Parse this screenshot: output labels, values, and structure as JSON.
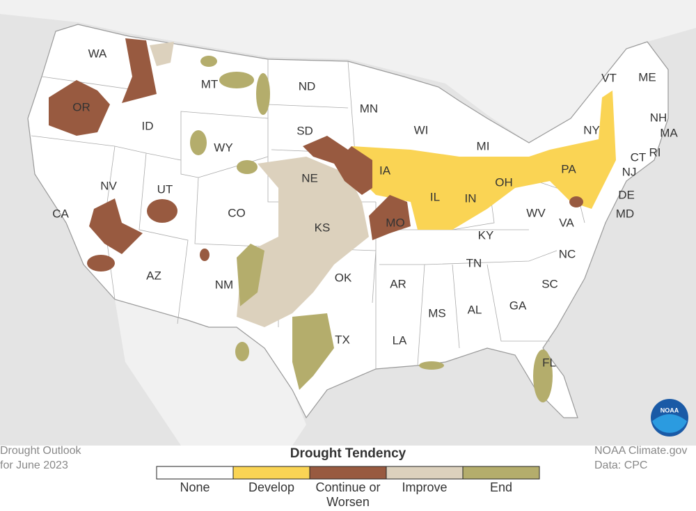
{
  "states": [
    "WA",
    "OR",
    "CA",
    "ID",
    "NV",
    "MT",
    "WY",
    "UT",
    "AZ",
    "CO",
    "NM",
    "ND",
    "SD",
    "NE",
    "KS",
    "OK",
    "TX",
    "MN",
    "IA",
    "MO",
    "AR",
    "LA",
    "WI",
    "IL",
    "MI",
    "IN",
    "OH",
    "KY",
    "TN",
    "MS",
    "AL",
    "GA",
    "FL",
    "SC",
    "NC",
    "VA",
    "WV",
    "PA",
    "NY",
    "VT",
    "ME",
    "NH",
    "MA",
    "CT",
    "RI",
    "NJ",
    "DE",
    "MD"
  ],
  "legend": {
    "title": "Drought Tendency",
    "items": [
      {
        "label": "None",
        "color": "#ffffff"
      },
      {
        "label": "Develop",
        "color": "#fad454"
      },
      {
        "label": "Continue or Worsen",
        "color": "#985a40"
      },
      {
        "label": "Improve",
        "color": "#dcd1bd"
      },
      {
        "label": "End",
        "color": "#b4ad6c"
      }
    ]
  },
  "caption": [
    "Drought Outlook",
    "for June 2023"
  ],
  "credit": [
    "NOAA Climate.gov",
    "Data: CPC"
  ],
  "logo": "NOAA"
}
